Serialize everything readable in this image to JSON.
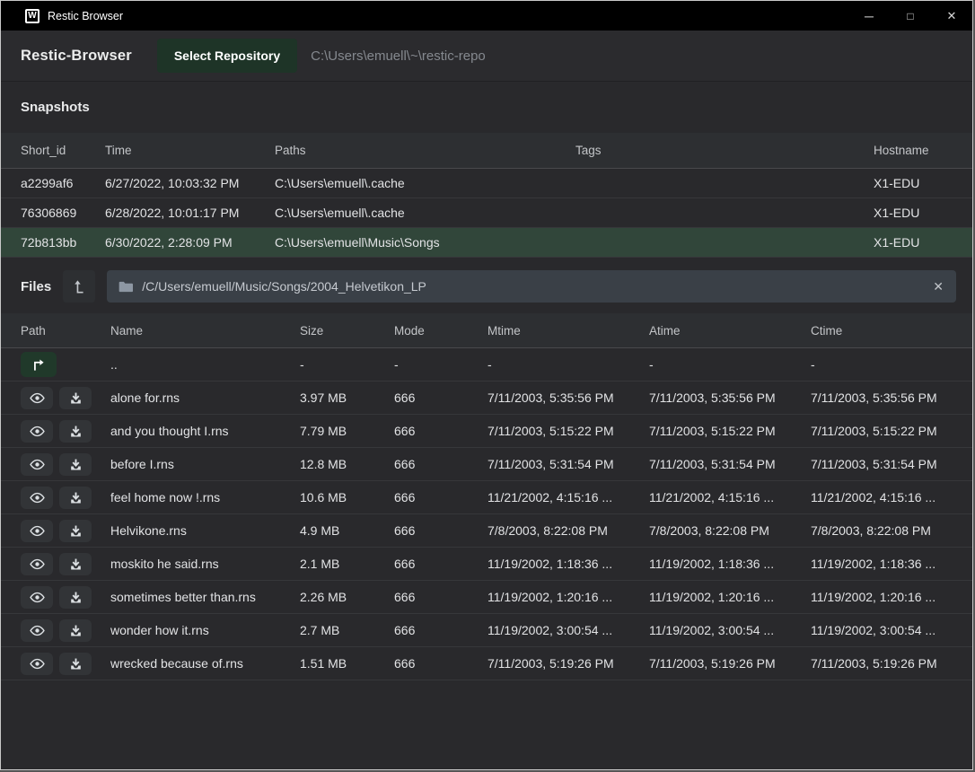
{
  "window": {
    "title": "Restic Browser",
    "logo_letter": "W",
    "controls": [
      {
        "name": "minimize",
        "glyph": "─"
      },
      {
        "name": "maximize",
        "glyph": "□"
      },
      {
        "name": "close",
        "glyph": "✕"
      }
    ]
  },
  "header": {
    "app_title": "Restic-Browser",
    "select_repository_label": "Select Repository",
    "repository_path": "C:\\Users\\emuell\\~\\restic-repo"
  },
  "snapshots": {
    "title": "Snapshots",
    "columns": [
      "Short_id",
      "Time",
      "Paths",
      "Tags",
      "Hostname"
    ],
    "rows": [
      {
        "short_id": "a2299af6",
        "time": "6/27/2022, 10:03:32 PM",
        "paths": "C:\\Users\\emuell\\.cache",
        "tags": "",
        "hostname": "X1-EDU",
        "selected": false
      },
      {
        "short_id": "76306869",
        "time": "6/28/2022, 10:01:17 PM",
        "paths": "C:\\Users\\emuell\\.cache",
        "tags": "",
        "hostname": "X1-EDU",
        "selected": false
      },
      {
        "short_id": "72b813bb",
        "time": "6/30/2022, 2:28:09 PM",
        "paths": "C:\\Users\\emuell\\Music\\Songs",
        "tags": "",
        "hostname": "X1-EDU",
        "selected": true
      }
    ]
  },
  "files": {
    "title": "Files",
    "path_value": "/C/Users/emuell/Music/Songs/2004_Helvetikon_LP",
    "clear_glyph": "✕",
    "columns": [
      "Path",
      "Name",
      "Size",
      "Mode",
      "Mtime",
      "Atime",
      "Ctime"
    ],
    "rows": [
      {
        "type": "up",
        "name": "..",
        "size": "-",
        "mode": "-",
        "mtime": "-",
        "atime": "-",
        "ctime": "-"
      },
      {
        "type": "file",
        "name": "alone for.rns",
        "size": "3.97 MB",
        "mode": "666",
        "mtime": "7/11/2003, 5:35:56 PM",
        "atime": "7/11/2003, 5:35:56 PM",
        "ctime": "7/11/2003, 5:35:56 PM"
      },
      {
        "type": "file",
        "name": "and you thought I.rns",
        "size": "7.79 MB",
        "mode": "666",
        "mtime": "7/11/2003, 5:15:22 PM",
        "atime": "7/11/2003, 5:15:22 PM",
        "ctime": "7/11/2003, 5:15:22 PM"
      },
      {
        "type": "file",
        "name": "before I.rns",
        "size": "12.8 MB",
        "mode": "666",
        "mtime": "7/11/2003, 5:31:54 PM",
        "atime": "7/11/2003, 5:31:54 PM",
        "ctime": "7/11/2003, 5:31:54 PM"
      },
      {
        "type": "file",
        "name": "feel home now !.rns",
        "size": "10.6 MB",
        "mode": "666",
        "mtime": "11/21/2002, 4:15:16 ...",
        "atime": "11/21/2002, 4:15:16 ...",
        "ctime": "11/21/2002, 4:15:16 ..."
      },
      {
        "type": "file",
        "name": "Helvikone.rns",
        "size": "4.9 MB",
        "mode": "666",
        "mtime": "7/8/2003, 8:22:08 PM",
        "atime": "7/8/2003, 8:22:08 PM",
        "ctime": "7/8/2003, 8:22:08 PM"
      },
      {
        "type": "file",
        "name": "moskito he said.rns",
        "size": "2.1 MB",
        "mode": "666",
        "mtime": "11/19/2002, 1:18:36 ...",
        "atime": "11/19/2002, 1:18:36 ...",
        "ctime": "11/19/2002, 1:18:36 ..."
      },
      {
        "type": "file",
        "name": "sometimes better than.rns",
        "size": "2.26 MB",
        "mode": "666",
        "mtime": "11/19/2002, 1:20:16 ...",
        "atime": "11/19/2002, 1:20:16 ...",
        "ctime": "11/19/2002, 1:20:16 ..."
      },
      {
        "type": "file",
        "name": "wonder how it.rns",
        "size": "2.7 MB",
        "mode": "666",
        "mtime": "11/19/2002, 3:00:54 ...",
        "atime": "11/19/2002, 3:00:54 ...",
        "ctime": "11/19/2002, 3:00:54 ..."
      },
      {
        "type": "file",
        "name": "wrecked because of.rns",
        "size": "1.51 MB",
        "mode": "666",
        "mtime": "7/11/2003, 5:19:26 PM",
        "atime": "7/11/2003, 5:19:26 PM",
        "ctime": "7/11/2003, 5:19:26 PM"
      }
    ]
  },
  "icons": {
    "app_logo": "W-box",
    "parent_dir_nav": "l-shaped-up-arrow",
    "folder": "solid-folder",
    "clear_path": "✕",
    "up_directory": "up-then-right-arrow",
    "view_file": "eye",
    "download_file": "download-to-tray"
  },
  "colors": {
    "titlebar_bg": "#000000",
    "window_bg": "#29292c",
    "table_header_bg": "#2d2f32",
    "selected_row_bg": "#31463a",
    "accent_button_bg": "#1e3427",
    "up_button_bg": "#20392a",
    "path_input_bg": "#3a4047",
    "muted_text": "#85898f",
    "body_text": "#e2e3e5"
  }
}
